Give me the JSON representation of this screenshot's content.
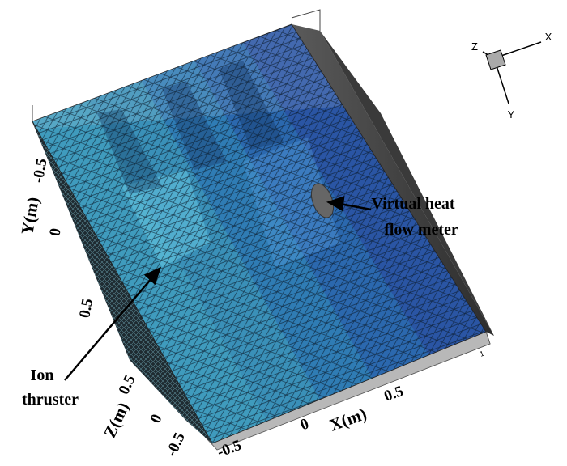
{
  "axes": {
    "y": {
      "label": "Y(m)",
      "ticks": [
        "-0.5",
        "0",
        "0.5"
      ]
    },
    "z": {
      "label": "Z(m)",
      "ticks": [
        "0.5",
        "0",
        "-0.5"
      ]
    },
    "x": {
      "label": "X(m)",
      "ticks": [
        "-0.5",
        "0",
        "0.5",
        "1"
      ]
    }
  },
  "triad": {
    "x": "X",
    "y": "Y",
    "z": "Z"
  },
  "annotations": [
    {
      "lines": [
        "Virtual heat",
        "flow meter"
      ]
    },
    {
      "lines": [
        "Ion",
        "thruster"
      ]
    }
  ]
}
